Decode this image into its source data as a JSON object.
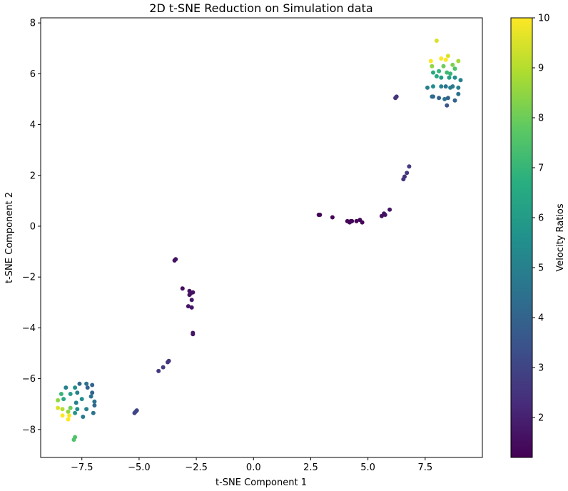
{
  "chart_data": {
    "type": "scatter",
    "title": "2D t-SNE Reduction on Simulation data",
    "xlabel": "t-SNE Component 1",
    "ylabel": "t-SNE Component 2",
    "xlim": [
      -9.3,
      10.0
    ],
    "ylim": [
      -9.1,
      8.2
    ],
    "xticks": [
      -7.5,
      -5.0,
      -2.5,
      0.0,
      2.5,
      5.0,
      7.5
    ],
    "xtick_labels": [
      "−7.5",
      "−5.0",
      "−2.5",
      "0.0",
      "2.5",
      "5.0",
      "7.5"
    ],
    "yticks": [
      -8,
      -6,
      -4,
      -2,
      0,
      2,
      4,
      6,
      8
    ],
    "ytick_labels": [
      "−8",
      "−6",
      "−4",
      "−2",
      "0",
      "2",
      "4",
      "6",
      "8"
    ],
    "colorbar": {
      "label": "Velocity Ratios",
      "colormap": "viridis",
      "range": [
        1.2,
        10
      ],
      "ticks": [
        2,
        3,
        4,
        5,
        6,
        7,
        8,
        9,
        10
      ],
      "tick_labels": [
        "2",
        "3",
        "4",
        "5",
        "6",
        "7",
        "8",
        "9",
        "10"
      ]
    },
    "grid": false,
    "points": [
      [
        8.0,
        7.3,
        9.5
      ],
      [
        8.2,
        6.6,
        10.0
      ],
      [
        8.5,
        6.7,
        9.5
      ],
      [
        8.4,
        6.55,
        10.0
      ],
      [
        7.75,
        6.5,
        10.0
      ],
      [
        8.95,
        6.5,
        8.8
      ],
      [
        7.8,
        6.3,
        8.5
      ],
      [
        8.3,
        6.3,
        8.0
      ],
      [
        8.7,
        6.35,
        8.2
      ],
      [
        8.8,
        6.2,
        7.5
      ],
      [
        7.85,
        6.05,
        6.5
      ],
      [
        8.1,
        6.1,
        7.0
      ],
      [
        8.45,
        6.05,
        7.2
      ],
      [
        8.6,
        6.0,
        7.0
      ],
      [
        8.0,
        5.9,
        6.5
      ],
      [
        8.2,
        5.85,
        6.0
      ],
      [
        8.55,
        5.85,
        6.2
      ],
      [
        8.8,
        5.85,
        5.5
      ],
      [
        9.05,
        5.75,
        5.0
      ],
      [
        7.6,
        5.45,
        5.0
      ],
      [
        7.85,
        5.5,
        5.5
      ],
      [
        8.2,
        5.5,
        5.0
      ],
      [
        8.4,
        5.5,
        4.5
      ],
      [
        8.6,
        5.45,
        5.0
      ],
      [
        8.7,
        5.5,
        4.8
      ],
      [
        8.95,
        5.45,
        5.0
      ],
      [
        7.8,
        5.1,
        4.5
      ],
      [
        8.1,
        5.05,
        4.0
      ],
      [
        8.35,
        5.0,
        4.5
      ],
      [
        8.5,
        5.05,
        4.0
      ],
      [
        8.8,
        4.95,
        4.0
      ],
      [
        8.95,
        5.2,
        4.5
      ],
      [
        8.45,
        4.75,
        3.5
      ],
      [
        7.85,
        5.1,
        4.2
      ],
      [
        6.2,
        5.05,
        2.5
      ],
      [
        6.25,
        5.1,
        2.5
      ],
      [
        6.8,
        2.35,
        2.7
      ],
      [
        6.7,
        2.1,
        2.6
      ],
      [
        6.6,
        1.95,
        2.4
      ],
      [
        6.55,
        1.85,
        2.5
      ],
      [
        5.95,
        0.65,
        1.7
      ],
      [
        5.7,
        0.5,
        1.6
      ],
      [
        5.6,
        0.4,
        1.6
      ],
      [
        5.75,
        0.45,
        1.6
      ],
      [
        2.85,
        0.45,
        1.3
      ],
      [
        2.9,
        0.45,
        1.3
      ],
      [
        3.45,
        0.35,
        1.3
      ],
      [
        4.1,
        0.2,
        1.3
      ],
      [
        4.2,
        0.15,
        1.3
      ],
      [
        4.3,
        0.2,
        1.3
      ],
      [
        4.5,
        0.2,
        1.3
      ],
      [
        4.65,
        0.25,
        1.3
      ],
      [
        4.75,
        0.15,
        1.3
      ],
      [
        4.25,
        0.2,
        1.3
      ],
      [
        -3.4,
        -1.3,
        1.6
      ],
      [
        -3.45,
        -1.35,
        1.6
      ],
      [
        -3.1,
        -2.45,
        1.5
      ],
      [
        -2.8,
        -2.55,
        1.6
      ],
      [
        -2.75,
        -2.65,
        1.6
      ],
      [
        -2.65,
        -2.6,
        1.6
      ],
      [
        -2.8,
        -2.7,
        1.6
      ],
      [
        -2.7,
        -2.9,
        1.7
      ],
      [
        -2.85,
        -3.15,
        1.7
      ],
      [
        -2.7,
        -3.2,
        1.7
      ],
      [
        -2.65,
        -4.2,
        1.7
      ],
      [
        -2.65,
        -4.25,
        1.7
      ],
      [
        -3.7,
        -5.3,
        2.5
      ],
      [
        -3.75,
        -5.35,
        2.5
      ],
      [
        -3.95,
        -5.55,
        2.7
      ],
      [
        -4.15,
        -5.7,
        2.6
      ],
      [
        -5.1,
        -7.25,
        3.0
      ],
      [
        -5.15,
        -7.3,
        3.0
      ],
      [
        -5.2,
        -7.35,
        3.0
      ],
      [
        -7.6,
        -6.2,
        4.2
      ],
      [
        -7.3,
        -6.2,
        4.5
      ],
      [
        -7.05,
        -6.25,
        4.0
      ],
      [
        -7.8,
        -6.35,
        5.5
      ],
      [
        -8.2,
        -6.35,
        5.0
      ],
      [
        -7.25,
        -6.35,
        4.0
      ],
      [
        -7.05,
        -6.55,
        4.0
      ],
      [
        -7.7,
        -6.55,
        5.0
      ],
      [
        -8.0,
        -6.6,
        6.0
      ],
      [
        -8.4,
        -6.6,
        7.0
      ],
      [
        -7.5,
        -6.8,
        5.5
      ],
      [
        -7.1,
        -6.7,
        4.5
      ],
      [
        -8.3,
        -6.8,
        6.5
      ],
      [
        -8.55,
        -6.85,
        8.5
      ],
      [
        -6.95,
        -6.9,
        4.5
      ],
      [
        -7.75,
        -6.95,
        5.0
      ],
      [
        -6.95,
        -7.05,
        4.2
      ],
      [
        -8.0,
        -7.15,
        8.0
      ],
      [
        -8.55,
        -7.15,
        9.5
      ],
      [
        -8.35,
        -7.2,
        9.0
      ],
      [
        -7.7,
        -7.2,
        5.5
      ],
      [
        -7.3,
        -7.2,
        5.0
      ],
      [
        -8.1,
        -7.3,
        8.5
      ],
      [
        -7.0,
        -7.35,
        4.5
      ],
      [
        -7.8,
        -7.35,
        5.8
      ],
      [
        -8.35,
        -7.45,
        10.0
      ],
      [
        -8.05,
        -7.45,
        10.0
      ],
      [
        -7.45,
        -7.5,
        4.8
      ],
      [
        -8.1,
        -7.6,
        10.0
      ],
      [
        -7.8,
        -8.3,
        7.5
      ],
      [
        -7.85,
        -8.4,
        7.5
      ]
    ]
  }
}
